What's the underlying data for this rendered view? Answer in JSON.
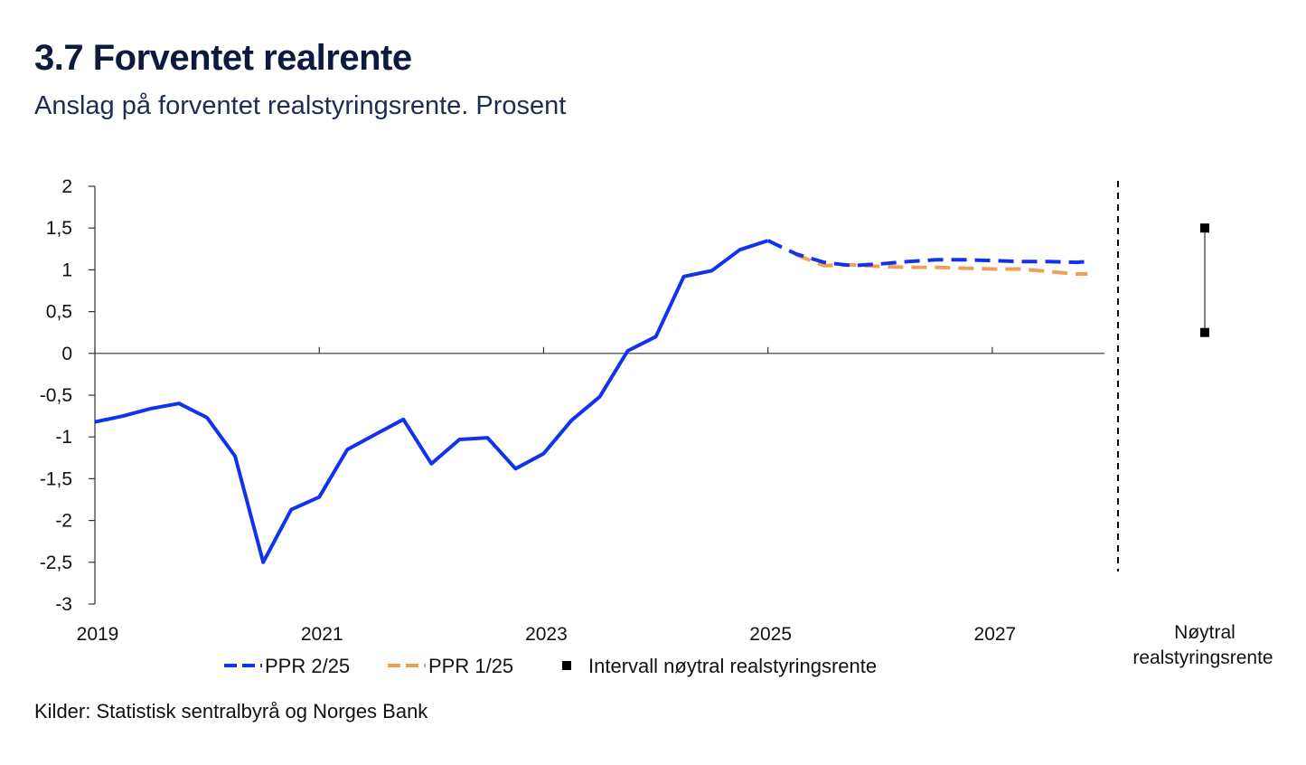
{
  "title": "3.7 Forventet realrente",
  "subtitle": "Anslag på forventet realstyringsrente. Prosent",
  "source": "Kilder: Statistisk sentralbyrå og Norges Bank",
  "colors": {
    "ppr225": "#1133ee",
    "ppr125": "#f0a055",
    "interval": "#000000",
    "axis": "#333333"
  },
  "chart_data": {
    "type": "line",
    "title": "3.7 Forventet realrente",
    "xlabel": "",
    "ylabel": "Prosent",
    "xlim": [
      2019,
      2028
    ],
    "ylim": [
      -3,
      2
    ],
    "y_ticks": [
      2,
      1.5,
      1,
      0.5,
      0,
      -0.5,
      -1,
      -1.5,
      -2,
      -2.5,
      -3
    ],
    "y_tick_labels": [
      "2",
      "1,5",
      "1",
      "0,5",
      "0",
      "-0,5",
      "-1",
      "-1,5",
      "-2",
      "-2,5",
      "-3"
    ],
    "x_ticks": [
      2019,
      2021,
      2023,
      2025,
      2027
    ],
    "x_tick_labels": [
      "2019",
      "2021",
      "2023",
      "2025",
      "2027"
    ],
    "series": [
      {
        "name": "PPR 2/25",
        "style": "solid",
        "x": [
          2019.0,
          2019.25,
          2019.5,
          2019.75,
          2020.0,
          2020.25,
          2020.5,
          2020.75,
          2021.0,
          2021.25,
          2021.5,
          2021.75,
          2022.0,
          2022.25,
          2022.5,
          2022.75,
          2023.0,
          2023.25,
          2023.5,
          2023.75,
          2024.0,
          2024.25,
          2024.5,
          2024.75,
          2025.0
        ],
        "values": [
          -0.82,
          -0.75,
          -0.66,
          -0.6,
          -0.77,
          -1.23,
          -2.5,
          -1.87,
          -1.72,
          -1.15,
          -0.97,
          -0.79,
          -1.32,
          -1.03,
          -1.01,
          -1.38,
          -1.2,
          -0.8,
          -0.52,
          0.03,
          0.2,
          0.92,
          0.99,
          1.24,
          1.35
        ]
      },
      {
        "name": "PPR 2/25",
        "style": "dashed",
        "x": [
          2025.0,
          2025.25,
          2025.5,
          2025.75,
          2026.0,
          2026.25,
          2026.5,
          2026.75,
          2027.0,
          2027.25,
          2027.5,
          2027.75,
          2027.85
        ],
        "values": [
          1.35,
          1.19,
          1.09,
          1.05,
          1.07,
          1.1,
          1.12,
          1.12,
          1.11,
          1.1,
          1.1,
          1.09,
          1.1
        ]
      },
      {
        "name": "PPR 1/25",
        "style": "dashed",
        "x": [
          2025.25,
          2025.5,
          2025.75,
          2026.0,
          2026.25,
          2026.5,
          2026.75,
          2027.0,
          2027.25,
          2027.5,
          2027.75,
          2027.85
        ],
        "values": [
          1.18,
          1.05,
          1.06,
          1.04,
          1.03,
          1.03,
          1.02,
          1.01,
          1.01,
          0.98,
          0.95,
          0.95
        ]
      }
    ],
    "interval": {
      "name": "Intervall nøytral realstyringsrente",
      "low": 0.25,
      "high": 1.5
    },
    "interval_label_line1": "Nøytral",
    "interval_label_line2": "realstyringsrente",
    "legend": [
      "PPR 2/25",
      "PPR 1/25",
      "Intervall nøytral realstyringsrente"
    ]
  }
}
